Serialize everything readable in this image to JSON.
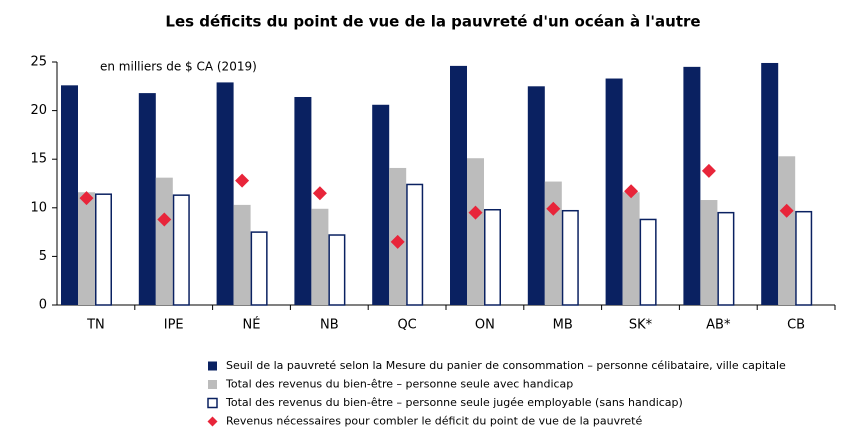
{
  "chart_data": {
    "type": "bar",
    "title": "Les déficits du point de vue de la pauvreté d'un  océan à l'autre",
    "annotation": "en milliers de $ CA (2019)",
    "categories": [
      "TN",
      "IPE",
      "NÉ",
      "NB",
      "QC",
      "ON",
      "MB",
      "SK*",
      "AB*",
      "CB"
    ],
    "series": [
      {
        "name": "Seuil de la pauvreté selon la Mesure du panier de consommation – personne célibataire, ville capitale",
        "color": "#0a2161",
        "style": "bar",
        "values": [
          22.6,
          21.8,
          22.9,
          21.4,
          20.6,
          24.6,
          22.5,
          23.3,
          24.5,
          24.9
        ]
      },
      {
        "name": "Total des revenus du bien-être – personne seule avec handicap",
        "color": "#bcbcbc",
        "style": "bar",
        "values": [
          11.6,
          13.1,
          10.3,
          9.9,
          14.1,
          15.1,
          12.7,
          11.6,
          10.8,
          15.3
        ]
      },
      {
        "name": "Total des revenus du bien-être – personne seule jugée employable (sans handicap)",
        "color": "#ffffff",
        "style": "outline-bar",
        "values": [
          11.4,
          11.3,
          7.5,
          7.2,
          12.4,
          9.8,
          9.7,
          8.8,
          9.5,
          9.6
        ]
      },
      {
        "name": "Revenus nécessaires pour combler le déficit du point de vue de la pauvreté",
        "color": "#e8253a",
        "style": "diamond",
        "values": [
          11.0,
          8.8,
          12.8,
          11.5,
          6.5,
          9.5,
          9.9,
          11.7,
          13.8,
          9.7
        ]
      }
    ],
    "ylim": [
      0,
      25
    ],
    "yticks": [
      0,
      5,
      10,
      15,
      20,
      25
    ],
    "grid": false,
    "legend": "bottom"
  }
}
